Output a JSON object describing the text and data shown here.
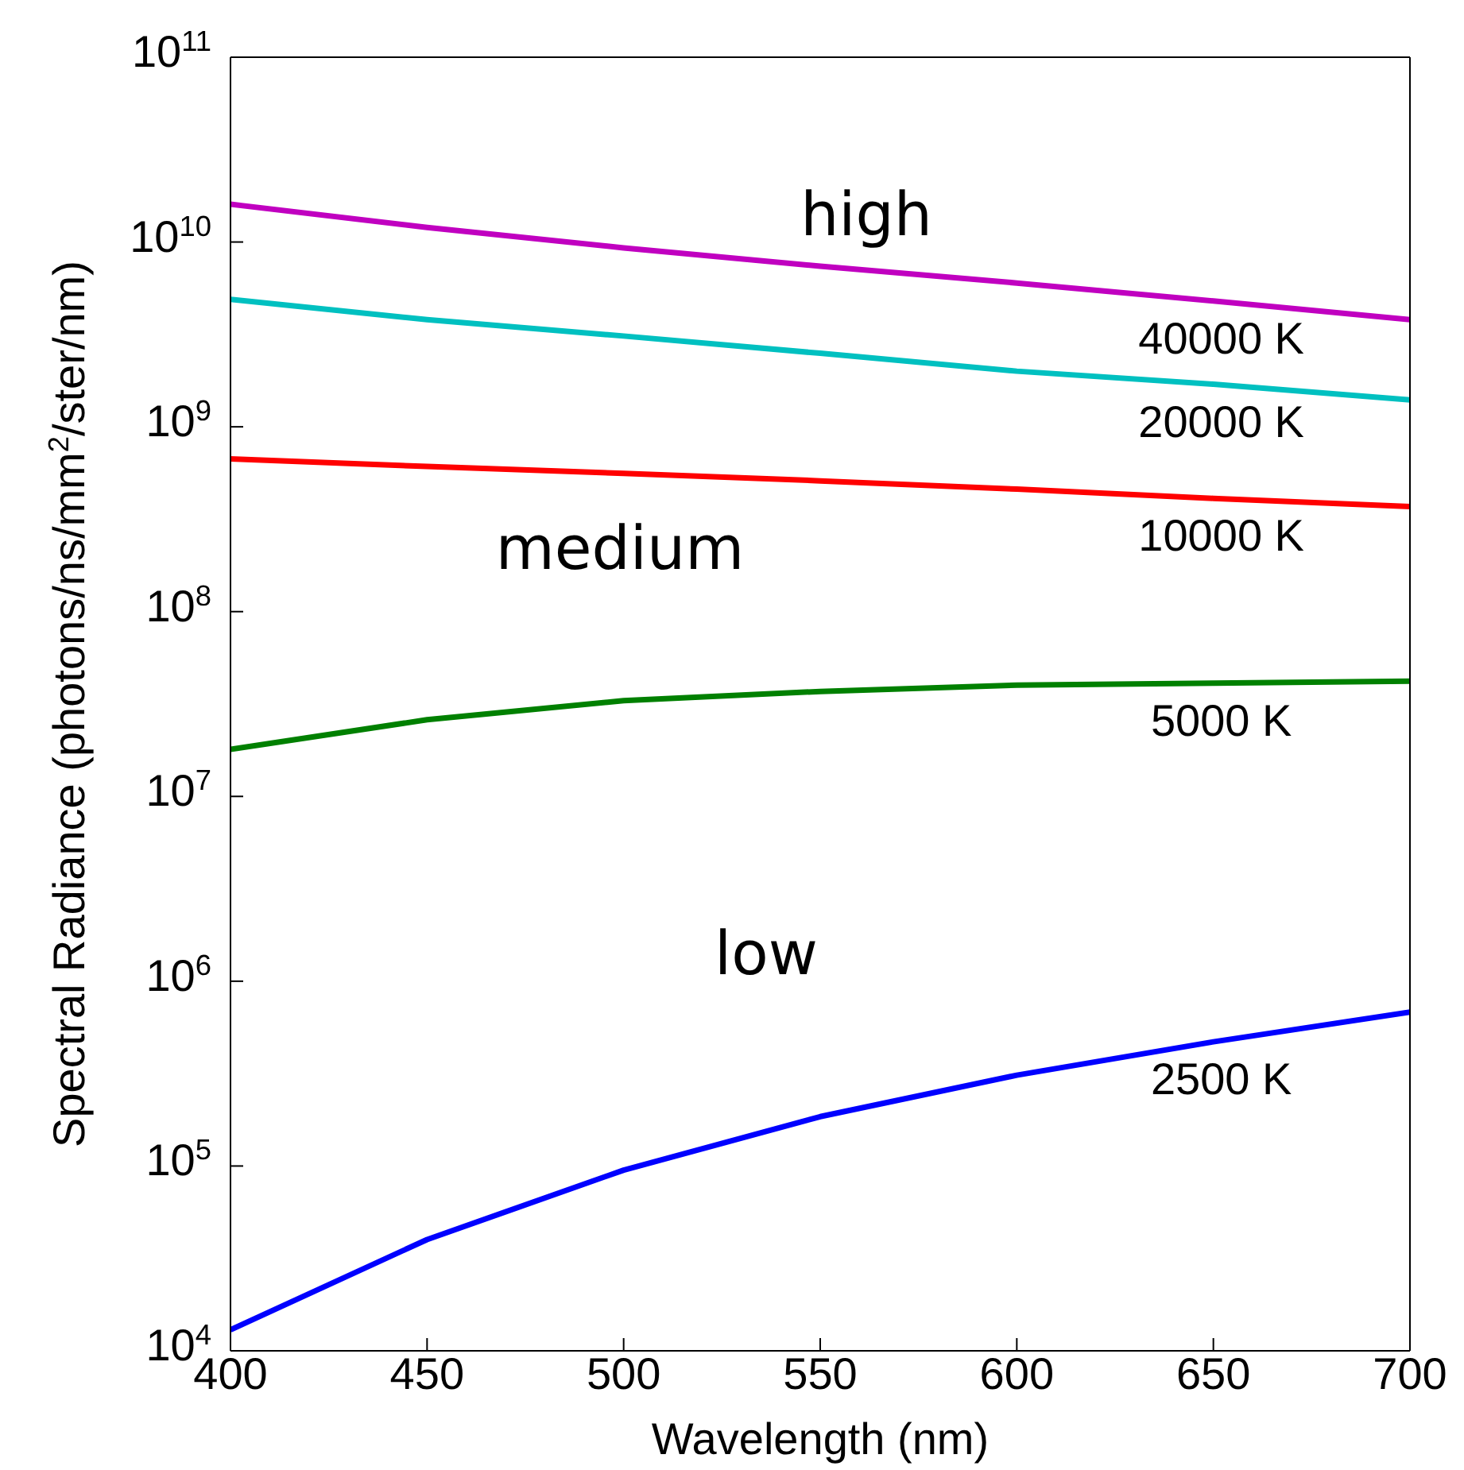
{
  "chart_data": {
    "type": "line",
    "xlabel": "Wavelength (nm)",
    "ylabel": "Spectral Radiance (photons/ns/mm$^{2}$/ster/nm)",
    "log": "y",
    "xlim": [
      400,
      700
    ],
    "xticks": [
      400,
      450,
      500,
      550,
      600,
      650,
      700
    ],
    "ylim": [
      10000,
      100000000000
    ],
    "yticks": [
      {
        "value": 10000,
        "label": "10$^{4}$"
      },
      {
        "value": 100000,
        "label": "10$^{5}$"
      },
      {
        "value": 1000000,
        "label": "10$^{6}$"
      },
      {
        "value": 10000000,
        "label": "10$^{7}$"
      },
      {
        "value": 100000000,
        "label": "10$^{8}$"
      },
      {
        "value": 1000000000,
        "label": "10$^{9}$"
      },
      {
        "value": 10000000000,
        "label": "10$^{10}$"
      },
      {
        "value": 100000000000,
        "label": "10$^{11}$"
      }
    ],
    "marker": "none",
    "line_style": "solid",
    "x": [
      400,
      450,
      500,
      550,
      600,
      650,
      700
    ],
    "series": [
      {
        "name": "40000 K",
        "color": "#c000c0",
        "values": [
          16000000000,
          12000000000,
          9300000000,
          7400000000,
          6000000000,
          4800000000,
          3800000000
        ]
      },
      {
        "name": "20000 K",
        "color": "#00c0c0",
        "values": [
          4900000000,
          3800000000,
          3100000000,
          2500000000,
          2000000000,
          1700000000,
          1400000000
        ]
      },
      {
        "name": "10000 K",
        "color": "#ff0000",
        "values": [
          670000000,
          610000000,
          560000000,
          510000000,
          460000000,
          410000000,
          370000000
        ]
      },
      {
        "name": "5000 K",
        "color": "#008000",
        "values": [
          18000000,
          26000000,
          33000000,
          37000000,
          40000000,
          41000000,
          42000000
        ]
      },
      {
        "name": "2500 K",
        "color": "#0000ff",
        "values": [
          13000,
          40000,
          95000,
          185000,
          310000,
          470000,
          680000
        ]
      }
    ],
    "annotations": [
      "high",
      "medium",
      "low"
    ]
  }
}
